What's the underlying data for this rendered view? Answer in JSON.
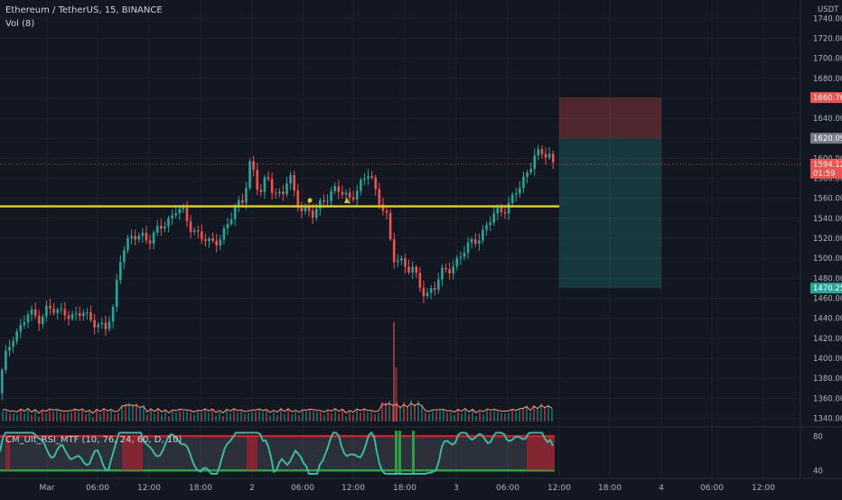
{
  "header": {
    "symbol_title": "Ethereum / TetherUS, 15, BINANCE",
    "volume_label": "Vol (8)",
    "indicator_label": "CM_Ult_RSI_MTF (10, 76, 24, 60, D, 10)"
  },
  "chart_data": {
    "type": "candlestick",
    "title": "Ethereum / TetherUS, 15, BINANCE",
    "y_axis_unit": "USDT",
    "ylim": [
      1330,
      1750
    ],
    "y_ticks": [
      1340,
      1360,
      1380,
      1400,
      1420,
      1440,
      1460,
      1480,
      1500,
      1520,
      1540,
      1560,
      1580,
      1600,
      1620,
      1640,
      1660,
      1680,
      1700,
      1720,
      1740
    ],
    "y_tick_labels": [
      "1340.00",
      "1360.00",
      "1380.00",
      "1400.00",
      "1420.00",
      "1440.00",
      "1460.00",
      "1480.00",
      "1500.00",
      "1520.00",
      "1540.00",
      "1560.00",
      "1580.00",
      "1600.00",
      "1620.00",
      "1640.00",
      "1660.00",
      "1680.00",
      "1700.00",
      "1720.00",
      "1740.00"
    ],
    "x_tick_labels": [
      "Mar",
      "06:00",
      "12:00",
      "18:00",
      "2",
      "06:00",
      "12:00",
      "18:00",
      "3",
      "06:00",
      "12:00",
      "18:00",
      "4",
      "06:00",
      "12:00"
    ],
    "price_path": [
      [
        0,
        1365
      ],
      [
        5,
        1385
      ],
      [
        10,
        1405
      ],
      [
        18,
        1425
      ],
      [
        25,
        1430
      ],
      [
        35,
        1445
      ],
      [
        45,
        1440
      ],
      [
        55,
        1450
      ],
      [
        65,
        1445
      ],
      [
        75,
        1448
      ],
      [
        85,
        1440
      ],
      [
        95,
        1445
      ],
      [
        105,
        1440
      ],
      [
        115,
        1430
      ],
      [
        120,
        1428
      ],
      [
        128,
        1450
      ],
      [
        135,
        1500
      ],
      [
        140,
        1510
      ],
      [
        150,
        1520
      ],
      [
        160,
        1525
      ],
      [
        170,
        1518
      ],
      [
        180,
        1530
      ],
      [
        190,
        1540
      ],
      [
        198,
        1550
      ],
      [
        205,
        1545
      ],
      [
        212,
        1532
      ],
      [
        220,
        1528
      ],
      [
        228,
        1520
      ],
      [
        236,
        1512
      ],
      [
        245,
        1520
      ],
      [
        255,
        1535
      ],
      [
        265,
        1550
      ],
      [
        272,
        1560
      ],
      [
        280,
        1600
      ],
      [
        285,
        1580
      ],
      [
        290,
        1560
      ],
      [
        295,
        1575
      ],
      [
        300,
        1580
      ],
      [
        305,
        1570
      ],
      [
        310,
        1565
      ],
      [
        315,
        1560
      ],
      [
        320,
        1575
      ],
      [
        325,
        1580
      ],
      [
        330,
        1560
      ],
      [
        336,
        1552
      ],
      [
        342,
        1548
      ],
      [
        348,
        1540
      ],
      [
        354,
        1550
      ],
      [
        360,
        1560
      ],
      [
        368,
        1565
      ],
      [
        375,
        1567
      ],
      [
        382,
        1565
      ],
      [
        390,
        1562
      ],
      [
        398,
        1568
      ],
      [
        405,
        1575
      ],
      [
        412,
        1588
      ],
      [
        418,
        1570
      ],
      [
        424,
        1555
      ],
      [
        430,
        1545
      ],
      [
        434,
        1520
      ],
      [
        437,
        1500
      ],
      [
        440,
        1498
      ],
      [
        445,
        1502
      ],
      [
        450,
        1495
      ],
      [
        455,
        1490
      ],
      [
        460,
        1488
      ],
      [
        465,
        1475
      ],
      [
        470,
        1468
      ],
      [
        475,
        1465
      ],
      [
        480,
        1470
      ],
      [
        485,
        1472
      ],
      [
        490,
        1482
      ],
      [
        500,
        1490
      ],
      [
        510,
        1500
      ],
      [
        520,
        1510
      ],
      [
        530,
        1520
      ],
      [
        540,
        1530
      ],
      [
        550,
        1543
      ],
      [
        560,
        1550
      ],
      [
        570,
        1560
      ],
      [
        578,
        1570
      ],
      [
        585,
        1582
      ],
      [
        590,
        1595
      ],
      [
        595,
        1607
      ],
      [
        600,
        1604
      ],
      [
        605,
        1600
      ],
      [
        610,
        1605
      ],
      [
        614,
        1594
      ]
    ],
    "candle_count": 150,
    "horizontal_line": {
      "value": 1552,
      "color": "#d9c928"
    },
    "current_price": {
      "value": "1594.12",
      "countdown": "01:59",
      "color": "#ef5350"
    },
    "position_tool": {
      "stop_price": "1660.76",
      "entry_price": "1620.09",
      "target_price": "1470.25",
      "stop_color": "#ef5350",
      "entry_color": "#787b86",
      "target_color": "#26a69a"
    },
    "volume": {
      "spikes": [
        {
          "x": 435,
          "value_relative": 0.75
        },
        {
          "x": 437,
          "value_relative": 0.45
        }
      ],
      "ma_color": "#ff9e7a"
    },
    "rsi": {
      "upper": 80,
      "lower": 40,
      "tick_labels": [
        "80",
        "40"
      ],
      "line_color": "#3bb8a0",
      "overbought_color": "#cc1f2c",
      "oversold_color": "#2ea043",
      "overbought_zones_index": [
        [
          6,
          11
        ],
        [
          135,
          158
        ],
        [
          273,
          285
        ],
        [
          583,
          614
        ]
      ],
      "oversold_markers_index": [
        437,
        441,
        456
      ]
    }
  }
}
